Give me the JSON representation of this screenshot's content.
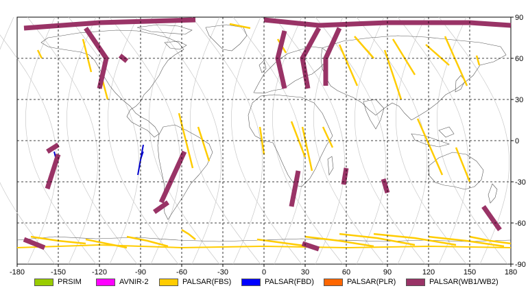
{
  "map": {
    "lon_range": [
      -180,
      180
    ],
    "lat_range": [
      -90,
      90
    ],
    "x_ticks": [
      "-180",
      "-150",
      "-120",
      "-90",
      "-60",
      "-30",
      "0",
      "30",
      "60",
      "90",
      "120",
      "150",
      "180"
    ],
    "y_ticks": [
      "90",
      "60",
      "30",
      "0",
      "-30",
      "-60",
      "-90"
    ],
    "grid": "dashed"
  },
  "legend": [
    {
      "label": "PRSIM",
      "color": "#99cc00"
    },
    {
      "label": "AVNIR-2",
      "color": "#ff00ff"
    },
    {
      "label": "PALSAR(FBS)",
      "color": "#ffcc00"
    },
    {
      "label": "PALSAR(FBD)",
      "color": "#0000ff"
    },
    {
      "label": "PALSAR(PLR)",
      "color": "#ff6600"
    },
    {
      "label": "PALSAR(WB1/WB2)",
      "color": "#993366"
    }
  ],
  "colors": {
    "grid": "#000000",
    "orbit": "#c8c8c8",
    "coast": "#555555",
    "fbs": "#ffcc00",
    "fbd": "#0000cc",
    "wb": "#993366"
  }
}
